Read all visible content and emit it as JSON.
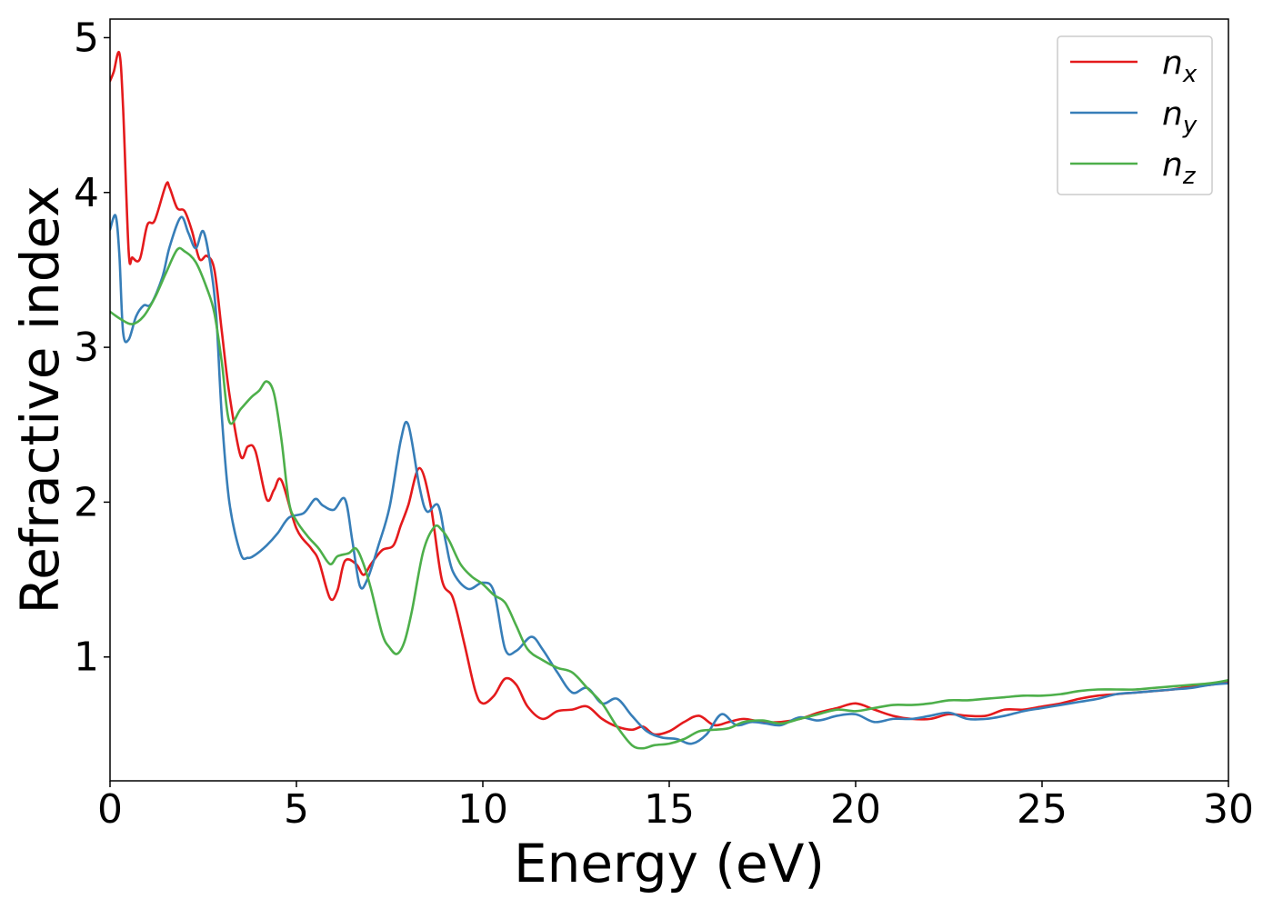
{
  "chart_data": {
    "type": "line",
    "title": "",
    "xlabel": "Energy (eV)",
    "ylabel": "Refractive index",
    "xlim": [
      0,
      30
    ],
    "ylim": [
      0.2,
      5.12
    ],
    "xticks": [
      0,
      5,
      10,
      15,
      20,
      25,
      30
    ],
    "yticks": [
      1,
      2,
      3,
      4,
      5
    ],
    "grid": false,
    "legend_position": "top-right",
    "series": [
      {
        "name": "n",
        "subscript": "x",
        "color": "#e41a1c",
        "x": [
          0,
          0.1,
          0.25,
          0.35,
          0.5,
          0.6,
          0.8,
          1.0,
          1.2,
          1.5,
          1.6,
          1.8,
          2.0,
          2.2,
          2.4,
          2.6,
          2.8,
          3.0,
          3.2,
          3.5,
          3.7,
          3.9,
          4.2,
          4.4,
          4.6,
          5.0,
          5.4,
          5.6,
          5.9,
          6.1,
          6.3,
          6.6,
          6.8,
          7.0,
          7.3,
          7.6,
          7.8,
          8.0,
          8.3,
          8.6,
          8.9,
          9.2,
          9.5,
          9.8,
          10.0,
          10.3,
          10.6,
          10.9,
          11.2,
          11.6,
          12.0,
          12.4,
          12.8,
          13.2,
          13.6,
          14.0,
          14.3,
          14.6,
          15.0,
          15.4,
          15.8,
          16.2,
          16.6,
          17.0,
          17.5,
          18.0,
          18.5,
          19.0,
          19.5,
          20.0,
          20.5,
          21.0,
          21.5,
          22.0,
          22.5,
          23.0,
          23.5,
          24.0,
          24.5,
          25.0,
          25.5,
          26.0,
          26.5,
          27.0,
          27.5,
          28.0,
          28.5,
          29.0,
          29.5,
          30.0
        ],
        "values": [
          4.72,
          4.78,
          4.9,
          4.55,
          3.62,
          3.58,
          3.57,
          3.79,
          3.82,
          4.05,
          4.03,
          3.9,
          3.88,
          3.75,
          3.57,
          3.59,
          3.5,
          3.1,
          2.7,
          2.3,
          2.36,
          2.33,
          2.02,
          2.08,
          2.14,
          1.83,
          1.7,
          1.62,
          1.38,
          1.43,
          1.62,
          1.6,
          1.53,
          1.6,
          1.69,
          1.72,
          1.85,
          1.98,
          2.22,
          1.98,
          1.5,
          1.38,
          1.09,
          0.78,
          0.7,
          0.75,
          0.86,
          0.82,
          0.68,
          0.6,
          0.65,
          0.66,
          0.68,
          0.6,
          0.55,
          0.53,
          0.55,
          0.5,
          0.52,
          0.58,
          0.62,
          0.56,
          0.58,
          0.6,
          0.58,
          0.58,
          0.6,
          0.64,
          0.67,
          0.7,
          0.66,
          0.62,
          0.6,
          0.6,
          0.63,
          0.62,
          0.62,
          0.66,
          0.66,
          0.68,
          0.7,
          0.73,
          0.75,
          0.76,
          0.77,
          0.78,
          0.79,
          0.81,
          0.82,
          0.84
        ]
      },
      {
        "name": "n",
        "subscript": "y",
        "color": "#377eb8",
        "x": [
          0,
          0.15,
          0.25,
          0.35,
          0.5,
          0.7,
          0.9,
          1.1,
          1.4,
          1.6,
          1.9,
          2.1,
          2.3,
          2.5,
          2.7,
          2.85,
          3.0,
          3.2,
          3.5,
          3.7,
          3.9,
          4.2,
          4.5,
          4.8,
          5.2,
          5.5,
          5.7,
          6.0,
          6.3,
          6.5,
          6.7,
          6.9,
          7.2,
          7.5,
          7.8,
          8.0,
          8.3,
          8.5,
          8.8,
          9.0,
          9.2,
          9.6,
          10.0,
          10.3,
          10.6,
          10.9,
          11.3,
          11.6,
          12.0,
          12.4,
          12.8,
          13.2,
          13.6,
          14.0,
          14.4,
          14.8,
          15.2,
          15.6,
          16.0,
          16.4,
          16.8,
          17.2,
          17.6,
          18.0,
          18.5,
          19.0,
          19.5,
          20.0,
          20.5,
          21.0,
          21.5,
          22.0,
          22.5,
          23.0,
          23.5,
          24.0,
          24.5,
          25.0,
          25.5,
          26.0,
          26.5,
          27.0,
          27.5,
          28.0,
          28.5,
          29.0,
          29.5,
          30.0
        ],
        "values": [
          3.76,
          3.85,
          3.6,
          3.1,
          3.05,
          3.2,
          3.27,
          3.28,
          3.45,
          3.65,
          3.84,
          3.74,
          3.64,
          3.75,
          3.52,
          3.2,
          2.55,
          2.0,
          1.67,
          1.64,
          1.66,
          1.72,
          1.8,
          1.9,
          1.93,
          2.02,
          1.98,
          1.95,
          2.02,
          1.75,
          1.46,
          1.5,
          1.72,
          1.97,
          2.4,
          2.5,
          2.1,
          1.94,
          1.98,
          1.75,
          1.55,
          1.44,
          1.48,
          1.42,
          1.05,
          1.04,
          1.13,
          1.05,
          0.9,
          0.77,
          0.8,
          0.7,
          0.73,
          0.62,
          0.52,
          0.48,
          0.47,
          0.44,
          0.5,
          0.63,
          0.56,
          0.58,
          0.57,
          0.56,
          0.61,
          0.59,
          0.62,
          0.63,
          0.58,
          0.6,
          0.6,
          0.62,
          0.64,
          0.6,
          0.6,
          0.62,
          0.65,
          0.67,
          0.69,
          0.71,
          0.73,
          0.76,
          0.77,
          0.78,
          0.79,
          0.8,
          0.82,
          0.83
        ]
      },
      {
        "name": "n",
        "subscript": "z",
        "color": "#4daf4a",
        "x": [
          0,
          0.3,
          0.6,
          0.9,
          1.2,
          1.5,
          1.8,
          2.0,
          2.3,
          2.6,
          2.8,
          3.0,
          3.2,
          3.5,
          3.8,
          4.0,
          4.2,
          4.4,
          4.6,
          4.8,
          5.0,
          5.3,
          5.6,
          5.9,
          6.1,
          6.4,
          6.6,
          6.8,
          7.0,
          7.3,
          7.5,
          7.7,
          7.9,
          8.1,
          8.4,
          8.7,
          8.9,
          9.1,
          9.4,
          9.7,
          10.0,
          10.3,
          10.6,
          10.9,
          11.2,
          11.6,
          12.0,
          12.4,
          12.8,
          13.2,
          13.6,
          14.0,
          14.3,
          14.6,
          15.0,
          15.4,
          15.8,
          16.2,
          16.6,
          17.0,
          17.5,
          18.0,
          18.5,
          19.0,
          19.5,
          20.0,
          20.5,
          21.0,
          21.5,
          22.0,
          22.5,
          23.0,
          23.5,
          24.0,
          24.5,
          25.0,
          25.5,
          26.0,
          26.5,
          27.0,
          27.5,
          28.0,
          28.5,
          29.0,
          29.5,
          30.0
        ],
        "values": [
          3.23,
          3.18,
          3.15,
          3.2,
          3.32,
          3.48,
          3.63,
          3.62,
          3.55,
          3.38,
          3.22,
          2.9,
          2.52,
          2.6,
          2.68,
          2.72,
          2.78,
          2.7,
          2.4,
          2.0,
          1.88,
          1.78,
          1.7,
          1.6,
          1.65,
          1.67,
          1.7,
          1.6,
          1.44,
          1.15,
          1.06,
          1.02,
          1.1,
          1.3,
          1.68,
          1.84,
          1.82,
          1.75,
          1.6,
          1.52,
          1.47,
          1.4,
          1.35,
          1.2,
          1.05,
          0.98,
          0.93,
          0.9,
          0.8,
          0.7,
          0.55,
          0.43,
          0.41,
          0.43,
          0.44,
          0.47,
          0.52,
          0.53,
          0.54,
          0.58,
          0.59,
          0.57,
          0.6,
          0.63,
          0.66,
          0.65,
          0.67,
          0.69,
          0.69,
          0.7,
          0.72,
          0.72,
          0.73,
          0.74,
          0.75,
          0.75,
          0.76,
          0.78,
          0.79,
          0.79,
          0.79,
          0.8,
          0.81,
          0.82,
          0.83,
          0.85
        ]
      }
    ]
  }
}
